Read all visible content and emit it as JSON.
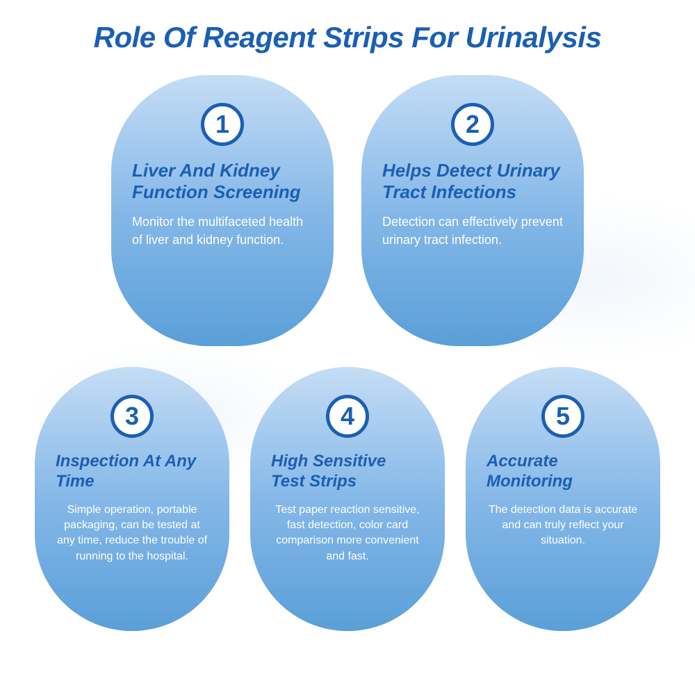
{
  "title": "Role Of Reagent Strips For Urinalysis",
  "colors": {
    "primary": "#1a5fb4",
    "card_gradient_top": "#c5ddf5",
    "card_gradient_mid": "#85b8e8",
    "card_gradient_bottom": "#5a9fd8",
    "white": "#ffffff"
  },
  "cards": [
    {
      "number": "1",
      "title": "Liver And Kidney Function Screening",
      "description": "Monitor the multifaceted health of liver and kidney function."
    },
    {
      "number": "2",
      "title": "Helps Detect Urinary Tract Infections",
      "description": "Detection can effectively prevent urinary tract infection."
    },
    {
      "number": "3",
      "title": "Inspection At Any Time",
      "description": "Simple operation, portable packaging, can be tested at any time, reduce the trouble of running to the hospital."
    },
    {
      "number": "4",
      "title": "High Sensitive Test Strips",
      "description": "Test paper reaction sensitive, fast detection, color card comparison more convenient and fast."
    },
    {
      "number": "5",
      "title": "Accurate Monitoring",
      "description": "The detection data is accurate and can truly reflect your situation."
    }
  ]
}
